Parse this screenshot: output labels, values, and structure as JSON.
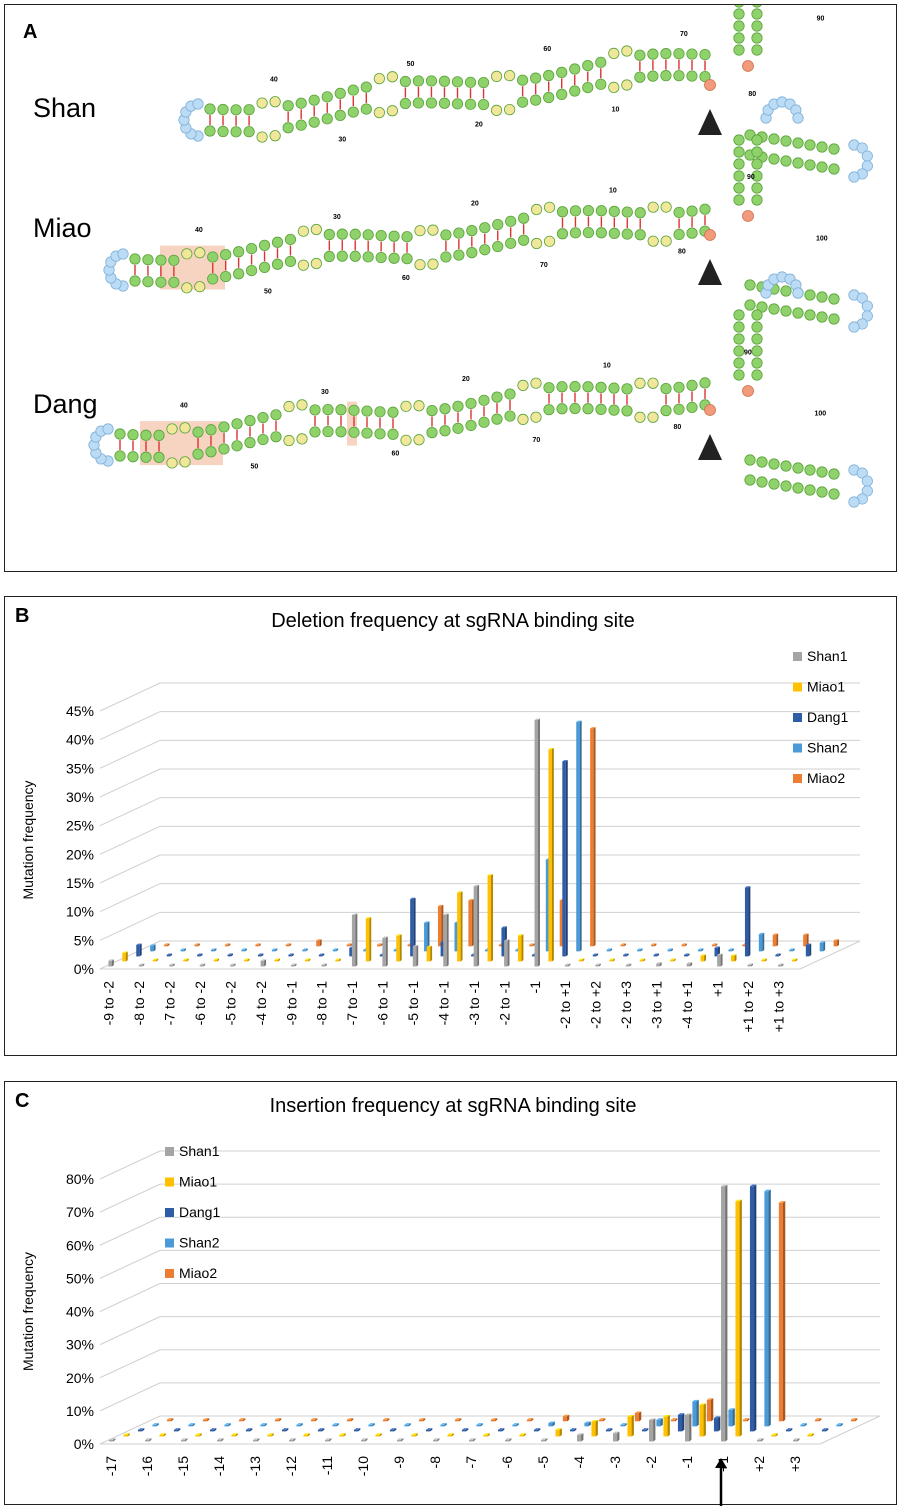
{
  "panel_a": {
    "letter": "A",
    "structures": [
      {
        "name": "Shan",
        "labels": [
          "40",
          "30",
          "50",
          "20",
          "60",
          "10",
          "70",
          "80",
          "90"
        ]
      },
      {
        "name": "Miao",
        "labels": [
          "40",
          "50",
          "30",
          "60",
          "20",
          "70",
          "10",
          "80",
          "90",
          "100"
        ]
      },
      {
        "name": "Dang",
        "labels": [
          "40",
          "50",
          "30",
          "60",
          "20",
          "70",
          "10",
          "80",
          "90",
          "100"
        ]
      }
    ]
  },
  "chart_data": [
    {
      "panel": "B",
      "type": "bar",
      "title": "Deletion frequency at sgRNA binding site",
      "ylabel": "Mutation frequency",
      "xlabel": "",
      "ylim": [
        0,
        45
      ],
      "yticks": [
        "0%",
        "5%",
        "10%",
        "15%",
        "20%",
        "25%",
        "30%",
        "35%",
        "40%",
        "45%"
      ],
      "legend_position": "top-right",
      "categories": [
        "-9 to -2",
        "-8 to -2",
        "-7 to -2",
        "-6 to -2",
        "-5 to -2",
        "-4 to -2",
        "-9 to -1",
        "-8 to -1",
        "-7 to -1",
        "-6 to -1",
        "-5 to -1",
        "-4 to -1",
        "-3 to -1",
        "-2 to -1",
        "-1",
        "-2 to +1",
        "-2 to +2",
        "-2 to +3",
        "-3 to +1",
        "-4 to +1",
        "+1",
        "+1 to +2",
        "+1 to +3"
      ],
      "series": [
        {
          "name": "Shan1",
          "color": "#a5a5a5",
          "values": [
            1,
            0,
            0,
            0,
            0,
            1,
            0,
            0,
            9,
            5,
            3.5,
            9,
            14,
            4.5,
            43,
            0,
            0,
            0,
            0.5,
            0.5,
            2,
            0,
            0
          ]
        },
        {
          "name": "Miao1",
          "color": "#ffc000",
          "values": [
            1.5,
            0,
            0,
            0,
            0,
            0,
            0,
            0,
            7.5,
            4.5,
            2.5,
            12,
            15,
            4.5,
            37,
            0,
            0,
            0,
            0,
            1,
            1,
            0,
            0
          ]
        },
        {
          "name": "Dang1",
          "color": "#2e5ca6",
          "values": [
            2,
            0,
            0,
            0,
            0,
            0,
            0,
            1.5,
            0,
            10,
            2.5,
            0,
            5,
            0,
            34,
            0,
            0,
            0,
            0,
            1.5,
            12,
            0,
            2
          ]
        },
        {
          "name": "Shan2",
          "color": "#4a9ad8",
          "values": [
            1,
            0,
            0,
            0,
            0,
            0,
            0,
            0,
            0,
            5,
            5,
            0,
            0,
            16,
            40,
            0,
            0,
            0,
            0,
            0,
            3,
            0,
            1.5
          ]
        },
        {
          "name": "Miao2",
          "color": "#ed7d31",
          "values": [
            0,
            0,
            0,
            0,
            0,
            1,
            0,
            0,
            0,
            7,
            8,
            0,
            0,
            8,
            38,
            0,
            0,
            0,
            0,
            0,
            2,
            2,
            1
          ]
        }
      ]
    },
    {
      "panel": "C",
      "type": "bar",
      "title": "Insertion frequency at sgRNA binding site",
      "ylabel": "Mutation frequency",
      "xlabel": "",
      "ylim": [
        0,
        80
      ],
      "yticks": [
        "0%",
        "10%",
        "20%",
        "30%",
        "40%",
        "50%",
        "60%",
        "70%",
        "80%"
      ],
      "legend_position": "top-left",
      "categories": [
        "-17",
        "-16",
        "-15",
        "-14",
        "-13",
        "-12",
        "-11",
        "-10",
        "-9",
        "-8",
        "-7",
        "-6",
        "-5",
        "-4",
        "-3",
        "-2",
        "-1",
        "+1",
        "+2",
        "+3"
      ],
      "series": [
        {
          "name": "Shan1",
          "color": "#a5a5a5",
          "values": [
            0,
            0,
            0,
            0,
            0,
            0,
            0,
            0,
            0,
            0,
            0,
            0,
            0,
            2,
            2.5,
            6.5,
            8,
            77,
            0,
            0.5
          ]
        },
        {
          "name": "Miao1",
          "color": "#ffc000",
          "values": [
            0,
            0,
            0,
            0,
            0,
            0,
            0,
            0,
            0,
            0,
            0,
            0,
            2,
            4.5,
            6,
            6,
            9.5,
            71,
            0,
            0
          ]
        },
        {
          "name": "Dang1",
          "color": "#2e5ca6",
          "values": [
            0,
            0,
            0,
            0,
            0,
            0,
            0,
            0,
            0,
            0,
            0,
            0,
            0,
            0,
            0,
            5,
            4,
            74,
            0,
            0
          ]
        },
        {
          "name": "Shan2",
          "color": "#4a9ad8",
          "values": [
            0,
            0,
            0,
            0,
            0,
            0,
            0,
            0,
            0,
            0,
            0,
            1,
            1,
            0,
            2,
            7.5,
            5,
            71,
            0,
            0
          ]
        },
        {
          "name": "Miao2",
          "color": "#ed7d31",
          "values": [
            0,
            0,
            0,
            0,
            0,
            0,
            0,
            0,
            0,
            0,
            0.5,
            1.5,
            0,
            2.5,
            0,
            6.5,
            0,
            66,
            0,
            0
          ]
        }
      ]
    }
  ]
}
